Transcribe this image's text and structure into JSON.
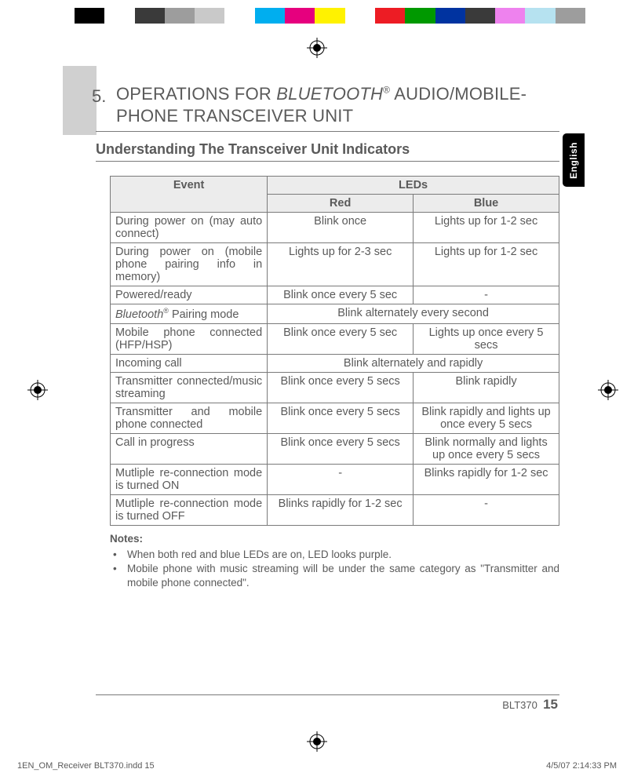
{
  "color_bar": [
    "#000000",
    "#ffffff",
    "#3a3a3a",
    "#9d9d9d",
    "#c9c9c9",
    "#ffffff",
    "#00aeef",
    "#e6007e",
    "#fff200",
    "#ffffff",
    "#ed1c24",
    "#009900",
    "#0033a0",
    "#3a3a3a",
    "#ee82ee",
    "#b6e2f0",
    "#9d9d9d"
  ],
  "lang_tab": "English",
  "chapter": {
    "number": "5.",
    "title_pre": "OPERATIONS FOR ",
    "title_italic": "BLUETOOTH",
    "title_sup": "®",
    "title_post": " AUDIO/MOBILE-PHONE TRANSCEIVER UNIT"
  },
  "section_title": "Understanding The Transceiver Unit Indicators",
  "table": {
    "header_event": "Event",
    "header_leds": "LEDs",
    "header_red": "Red",
    "header_blue": "Blue",
    "rows": [
      {
        "event": "During power on (may auto connect)",
        "red": "Blink once",
        "blue": "Lights up for 1-2 sec",
        "span": false
      },
      {
        "event": "During power on (mobile phone pairing info in memory)",
        "red": "Lights up for 2-3 sec",
        "blue": "Lights up for 1-2 sec",
        "span": false
      },
      {
        "event": "Powered/ready",
        "red": "Blink once every 5 sec",
        "blue": "-",
        "span": false
      },
      {
        "event_html": "bt_pairing",
        "red": "Blink alternately every second",
        "span": true
      },
      {
        "event": "Mobile phone connected (HFP/HSP)",
        "red": "Blink once every 5 sec",
        "blue": "Lights up once every 5 secs",
        "span": false
      },
      {
        "event": "Incoming call",
        "red": "Blink alternately and rapidly",
        "span": true
      },
      {
        "event": "Transmitter connected/music streaming",
        "red": "Blink once every 5 secs",
        "blue": "Blink rapidly",
        "span": false
      },
      {
        "event": "Transmitter and mobile phone connected",
        "red": "Blink once every 5 secs",
        "blue": "Blink rapidly and lights up once every 5 secs",
        "span": false
      },
      {
        "event": "Call in progress",
        "red": "Blink once every 5 secs",
        "blue": "Blink normally and lights up once every 5 secs",
        "span": false
      },
      {
        "event": "Mutliple re-connection mode is turned ON",
        "red": "-",
        "blue": "Blinks rapidly for 1-2 sec",
        "span": false
      },
      {
        "event": "Mutliple re-connection mode is turned OFF",
        "red": "Blinks rapidly for 1-2 sec",
        "blue": "-",
        "span": false
      }
    ],
    "bt_pairing_pre": "Bluetooth",
    "bt_pairing_sup": "®",
    "bt_pairing_post": " Pairing mode"
  },
  "notes": {
    "title": "Notes:",
    "items": [
      "When both red and blue LEDs are on, LED looks purple.",
      "Mobile phone with music streaming will be under the same category as \"Transmitter and mobile phone connected\"."
    ]
  },
  "footer": {
    "model": "BLT370",
    "page": "15"
  },
  "meta": {
    "left": "1EN_OM_Receiver BLT370.indd   15",
    "right": "4/5/07   2:14:33 PM"
  }
}
